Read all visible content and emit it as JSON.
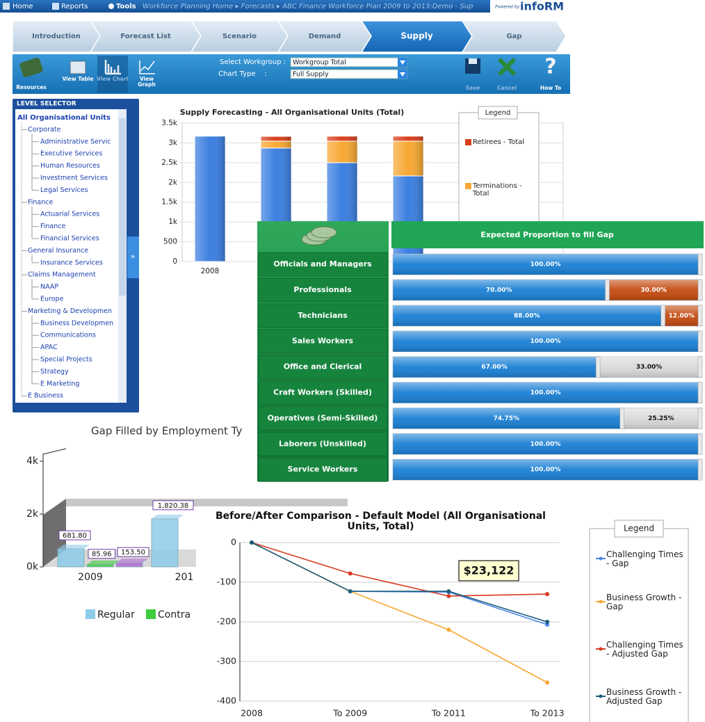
{
  "top_bar": {
    "home": "Home",
    "reports": "Reports",
    "tools": "Tools",
    "breadcrumb": "Workforce Planning Home ▸ Forecasts ▸ ABC Finance Workforce Plan 2009 to 2013:Demo - Sup",
    "powered_by": "Powered by",
    "brand": "infoRM"
  },
  "steps": [
    "Introduction",
    "Forecast List",
    "Scenario",
    "Demand",
    "Supply",
    "Gap"
  ],
  "active_step": "Supply",
  "toolbar": {
    "left": [
      "Resources",
      "View Table",
      "View Chart",
      "View Graph"
    ],
    "workgroup_label": "Select Workgroup :",
    "workgroup_value": "Workgroup Total",
    "chart_type_label": "Chart Type    :",
    "chart_type_value": "Full Supply",
    "right": [
      "Save",
      "Cancel",
      "How To"
    ]
  },
  "level_selector": {
    "title": "LEVEL SELECTOR",
    "root": "All Organisational Units",
    "groups": [
      {
        "label": "Corporate",
        "children": [
          "Administrative Servic",
          "Executive Services",
          "Human Resources",
          "Investment Services",
          "Legal Services"
        ]
      },
      {
        "label": "Finance",
        "children": [
          "Actuarial Services",
          "Finance",
          "Financial Services"
        ]
      },
      {
        "label": "General Insurance",
        "children": [
          "Insurance Services"
        ]
      },
      {
        "label": "Claims Management",
        "children": [
          "NAAP",
          "Europe"
        ]
      },
      {
        "label": "Marketing & Developmen",
        "children": [
          "Business Developmen",
          "Communications",
          "APAC",
          "Special Projects",
          "Strategy",
          "E Marketing"
        ]
      },
      {
        "label": "E Business",
        "children": []
      }
    ]
  },
  "chart_data": [
    {
      "type": "bar",
      "stacked": true,
      "title": "Supply Forecasting - All Organisational Units (Total)",
      "categories": [
        "2008",
        null,
        null,
        null
      ],
      "series": [
        {
          "color": "#3b7fe0",
          "values": [
            3170,
            2870,
            2500,
            2165
          ]
        },
        {
          "name": "Terminations - Total",
          "color": "#f7a833",
          "values": [
            null,
            175,
            545,
            880
          ]
        },
        {
          "name": "Retirees - Total",
          "color": "#d8401a",
          "values": [
            null,
            120,
            125,
            125
          ]
        }
      ],
      "ylim": [
        0,
        3500
      ],
      "yticks": [
        0,
        500,
        {
          "value": 1000,
          "label": "1k"
        },
        {
          "value": 1500,
          "label": "1.5k"
        },
        {
          "value": 2000,
          "label": "2k"
        },
        {
          "value": 2500,
          "label": "2.5k"
        },
        {
          "value": 3000,
          "label": "3k"
        },
        {
          "value": 3500,
          "label": "3.5k"
        }
      ],
      "grid": true,
      "legend_title": "Legend"
    },
    {
      "type": "bar",
      "stacked": true,
      "orientation": "horizontal",
      "title": "Expected Proportion to fill Gap",
      "categories": [
        "Officials and Managers",
        "Professionals",
        "Technicians",
        "Sales Workers",
        "Office and Clerical",
        "Craft Workers (Skilled)",
        "Operatives (Semi-Skilled)",
        "Laborers (Unskilled)",
        "Service Workers"
      ],
      "series": [
        {
          "color": "#1a7fd4",
          "values": [
            100,
            70,
            88,
            100,
            67,
            100,
            74.75,
            100,
            100
          ],
          "value_labels": [
            "100.00%",
            "70.00%",
            "88.00%",
            "100.00%",
            "67.00%",
            "100.00%",
            "74.75%",
            "100.00%",
            "100.00%"
          ]
        },
        {
          "color": "#c44a10",
          "values": [
            null,
            30,
            12,
            null,
            null,
            null,
            null,
            null,
            null
          ],
          "value_labels": [
            null,
            "30.00%",
            "12.00%",
            null,
            null,
            null,
            null,
            null,
            null
          ]
        },
        {
          "color": "#d9d9d9",
          "values": [
            null,
            null,
            null,
            null,
            33,
            null,
            25.25,
            null,
            null
          ],
          "value_labels": [
            null,
            null,
            null,
            null,
            "33.00%",
            null,
            "25.25%",
            null,
            null
          ]
        }
      ],
      "xlim": [
        0,
        100
      ]
    },
    {
      "type": "bar",
      "title": "Gap Filled by Employment Ty",
      "categories": [
        "2009",
        "201"
      ],
      "series": [
        {
          "name": "Regular",
          "color": "#8fcbea",
          "values": [
            681.8,
            1820.38
          ],
          "value_labels": [
            "681.80",
            "1,820.38"
          ]
        },
        {
          "name": "Contra",
          "color": "#3dcc3d",
          "values": [
            85.96,
            null
          ],
          "value_labels": [
            "85.96",
            null
          ]
        },
        {
          "color": "#b36ad6",
          "values": [
            153.5,
            null
          ],
          "value_labels": [
            "153.50",
            null
          ]
        }
      ],
      "ylim": [
        0,
        4000
      ],
      "yticks": [
        {
          "value": 0,
          "label": "0k"
        },
        {
          "value": 2000,
          "label": "2k"
        },
        {
          "value": 4000,
          "label": "4k"
        }
      ]
    },
    {
      "type": "line",
      "title": "Before/After Comparison - Default Model (All Organisational Units, Total)",
      "categories": [
        "2008",
        "To 2009",
        "To 2011",
        "To 2013"
      ],
      "series": [
        {
          "name": "Challenging Times - Gap",
          "color": "#4a86e8",
          "values": [
            0,
            -123,
            -125,
            -207
          ]
        },
        {
          "name": "Business Growth - Gap",
          "color": "#f7a833",
          "values": [
            0,
            -123,
            -220,
            -353
          ]
        },
        {
          "name": "Challenging Times - Adjusted Gap",
          "color": "#d6391e",
          "values": [
            0,
            -78,
            -135,
            -130
          ]
        },
        {
          "name": "Business Growth - Adjusted Gap",
          "color": "#1b5e7a",
          "values": [
            0,
            -123,
            -123,
            -200
          ]
        }
      ],
      "ylim": [
        -400,
        0
      ],
      "yticks": [
        0,
        -100,
        -200,
        -300,
        -400
      ],
      "grid": true,
      "legend_title": "Legend",
      "annotation": "$23,122"
    }
  ]
}
